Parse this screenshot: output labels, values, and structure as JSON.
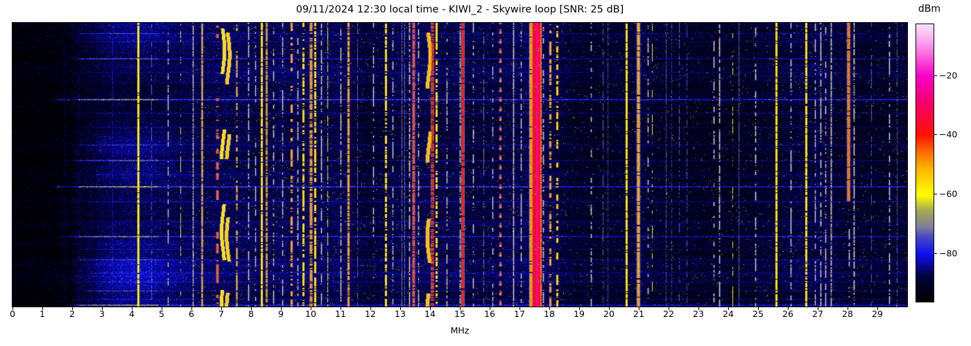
{
  "title": "09/11/2024 12:30 local time - KIWI_2 - Skywire loop [SNR: 25 dB]",
  "xaxis": {
    "label": "MHz",
    "tick_labels": [
      "0",
      "1",
      "2",
      "3",
      "4",
      "5",
      "6",
      "7",
      "8",
      "9",
      "10",
      "11",
      "12",
      "13",
      "14",
      "15",
      "16",
      "17",
      "18",
      "19",
      "20",
      "21",
      "22",
      "23",
      "24",
      "25",
      "26",
      "27",
      "28",
      "29"
    ],
    "min": 0,
    "max": 30
  },
  "colorbar": {
    "label": "dBm",
    "tick_labels": [
      "−20",
      "−40",
      "−60",
      "−80"
    ],
    "tick_values": [
      -20,
      -40,
      -60,
      -80
    ]
  },
  "chart_data": {
    "type": "heatmap",
    "subtype": "rf-waterfall-spectrogram",
    "title": "09/11/2024 12:30 local time - KIWI_2 - Skywire loop [SNR: 25 dB]",
    "xlabel": "MHz",
    "xlim": [
      0,
      30
    ],
    "x_ticks": [
      0,
      1,
      2,
      3,
      4,
      5,
      6,
      7,
      8,
      9,
      10,
      11,
      12,
      13,
      14,
      15,
      16,
      17,
      18,
      19,
      20,
      21,
      22,
      23,
      24,
      25,
      26,
      27,
      28,
      29
    ],
    "colorbar_label": "dBm",
    "colorbar_ticks": [
      -20,
      -40,
      -60,
      -80
    ],
    "clim": [
      -96.1,
      -2.6
    ],
    "grid": false,
    "legend": "colorbar-right",
    "colormap": [
      [
        0.0,
        "#000000"
      ],
      [
        0.09,
        "#020238"
      ],
      [
        0.169,
        "#0d0dee"
      ],
      [
        0.23,
        "#4444c8"
      ],
      [
        0.27,
        "#7f7f99"
      ],
      [
        0.33,
        "#a8a855"
      ],
      [
        0.383,
        "#ffff00"
      ],
      [
        0.48,
        "#ffb400"
      ],
      [
        0.54,
        "#ff6a00"
      ],
      [
        0.6,
        "#fe1000"
      ],
      [
        0.72,
        "#f6006e"
      ],
      [
        0.813,
        "#f800c8"
      ],
      [
        0.94,
        "#fba8ee"
      ],
      [
        1.0,
        "#fde2f9"
      ]
    ],
    "noise_profile_dbm": [
      -95.5,
      -95,
      -93.5,
      -91,
      -90.5,
      -90,
      -88.5,
      -87,
      -87.5,
      -87.5,
      -87,
      -87.5,
      -89.5,
      -87.5,
      -87.5,
      -88,
      -88.5,
      -87.5,
      -88,
      -90.5,
      -90.5,
      -89,
      -90.5,
      -91,
      -91,
      -90,
      -89,
      -88,
      -90,
      -90.5,
      -89.5
    ],
    "cloud": {
      "center_mhz": 4.0,
      "sigma_mhz": 1.25,
      "amp_db": 7
    },
    "signals_format": "[freq_MHz, width_px, level_dBm, duty, style, y0_frac_opt, y1_frac_opt]",
    "signals": [
      [
        1.75,
        1,
        -87,
        0.5,
        "dashed"
      ],
      [
        2.2,
        1,
        -85,
        0.5,
        "dashed"
      ],
      [
        3.35,
        1.5,
        -80,
        0.6,
        "dashed"
      ],
      [
        4.22,
        2,
        -59,
        0.95,
        "solid"
      ],
      [
        4.65,
        1,
        -73,
        0.5,
        "dashed"
      ],
      [
        5.22,
        1.5,
        -60,
        0.45,
        "dashed"
      ],
      [
        5.62,
        1,
        -62,
        0.3,
        "dashed"
      ],
      [
        6.05,
        1.5,
        -59,
        0.8,
        "solid"
      ],
      [
        6.35,
        1.5,
        -48,
        0.9,
        "solid"
      ],
      [
        6.87,
        2,
        -45,
        0.25,
        "dashed"
      ],
      [
        7.05,
        4,
        -57,
        0.75,
        "patchy"
      ],
      [
        7.22,
        4,
        -55,
        0.7,
        "patchy"
      ],
      [
        7.5,
        1.5,
        -49,
        0.55,
        "dashed"
      ],
      [
        7.9,
        1.5,
        -58,
        0.5,
        "dashed"
      ],
      [
        8.15,
        1.5,
        -60,
        0.4,
        "dashed"
      ],
      [
        8.35,
        2,
        -56,
        0.9,
        "solid"
      ],
      [
        8.5,
        1.5,
        -47,
        0.8,
        "solid"
      ],
      [
        8.75,
        1.5,
        -58,
        0.45,
        "dashed"
      ],
      [
        9.05,
        1.5,
        -59,
        0.5,
        "dashed"
      ],
      [
        9.35,
        2,
        -50,
        0.55,
        "dashed"
      ],
      [
        9.55,
        1.5,
        -57,
        0.5,
        "dashed"
      ],
      [
        9.75,
        2,
        -56,
        0.6,
        "dashed"
      ],
      [
        10.0,
        2.5,
        -49,
        0.75,
        "dashed"
      ],
      [
        10.15,
        2,
        -56,
        0.7,
        "dashed"
      ],
      [
        10.35,
        1.5,
        -58,
        0.5,
        "dashed"
      ],
      [
        10.55,
        1,
        -60,
        0.6,
        "dashed"
      ],
      [
        11.0,
        1.5,
        -58,
        0.5,
        "dashed"
      ],
      [
        11.25,
        2,
        -50,
        0.85,
        "solid"
      ],
      [
        11.55,
        1,
        -72,
        0.6,
        "dashed"
      ],
      [
        12.1,
        1.5,
        -59,
        0.4,
        "dashed"
      ],
      [
        12.5,
        2,
        -56,
        0.7,
        "dashed"
      ],
      [
        12.75,
        1.5,
        -59,
        0.45,
        "dashed"
      ],
      [
        13.05,
        1,
        -71,
        0.85,
        "solid"
      ],
      [
        13.15,
        1,
        -71,
        0.8,
        "solid"
      ],
      [
        13.3,
        1.5,
        -56,
        0.6,
        "dashed"
      ],
      [
        13.45,
        2,
        -44,
        0.9,
        "solid"
      ],
      [
        13.6,
        1.5,
        -57,
        0.5,
        "dashed"
      ],
      [
        13.95,
        4,
        -53,
        0.75,
        "patchy"
      ],
      [
        14.07,
        2,
        -41,
        0.8,
        "dashed"
      ],
      [
        14.2,
        2,
        -56,
        0.5,
        "dashed"
      ],
      [
        14.55,
        1.5,
        -59,
        0.4,
        "dashed"
      ],
      [
        15.0,
        1.5,
        -57,
        0.7,
        "dashed"
      ],
      [
        15.1,
        2,
        -40,
        0.96,
        "solid"
      ],
      [
        15.45,
        1.5,
        -58,
        0.45,
        "dashed"
      ],
      [
        15.8,
        1,
        -70,
        0.5,
        "dashed"
      ],
      [
        16.1,
        1.5,
        -60,
        0.35,
        "dashed"
      ],
      [
        16.35,
        2,
        -47,
        0.3,
        "dotted"
      ],
      [
        16.35,
        1,
        -41,
        0.15,
        "dotted"
      ],
      [
        16.8,
        1.5,
        -57,
        0.9,
        "solid"
      ],
      [
        17.05,
        1.5,
        -59,
        0.5,
        "dashed"
      ],
      [
        17.38,
        3,
        -49,
        0.95,
        "solid"
      ],
      [
        17.46,
        2,
        -38,
        0.97,
        "solid"
      ],
      [
        17.52,
        2,
        -36,
        0.97,
        "solid"
      ],
      [
        17.58,
        2,
        -23,
        0.96,
        "solid"
      ],
      [
        17.64,
        2,
        -37,
        0.96,
        "solid"
      ],
      [
        17.7,
        2,
        -46,
        0.9,
        "solid"
      ],
      [
        17.78,
        1.5,
        -56,
        0.5,
        "dashed"
      ],
      [
        18.02,
        2,
        -50,
        0.5,
        "dashed"
      ],
      [
        18.25,
        2,
        -54,
        0.45,
        "dashed"
      ],
      [
        19.4,
        1.5,
        -58,
        0.3,
        "dashed"
      ],
      [
        19.8,
        1,
        -72,
        0.5,
        "dashed"
      ],
      [
        19.95,
        1,
        -74,
        0.6,
        "solid"
      ],
      [
        20.58,
        2,
        -57,
        0.93,
        "solid"
      ],
      [
        20.98,
        3,
        -50,
        0.95,
        "solid"
      ],
      [
        21.3,
        1.5,
        -58,
        0.35,
        "dashed"
      ],
      [
        21.45,
        1,
        -60,
        0.25,
        "dashed"
      ],
      [
        21.9,
        1,
        -73,
        0.7,
        "solid"
      ],
      [
        22.1,
        1,
        -74,
        0.6,
        "solid"
      ],
      [
        22.35,
        1,
        -73,
        0.5,
        "dashed"
      ],
      [
        22.6,
        1,
        -74,
        0.5,
        "dashed"
      ],
      [
        23.5,
        1.5,
        -58,
        0.4,
        "dashed"
      ],
      [
        23.7,
        1.5,
        -57,
        0.6,
        "dashed"
      ],
      [
        24.15,
        1,
        -60,
        0.25,
        "dashed"
      ],
      [
        24.35,
        1.5,
        -72,
        0.8,
        "solid"
      ],
      [
        24.9,
        1.5,
        -57,
        0.45,
        "dashed"
      ],
      [
        25.6,
        2,
        -57,
        0.9,
        "solid"
      ],
      [
        26.1,
        1.5,
        -58,
        0.5,
        "dashed"
      ],
      [
        26.6,
        2,
        -57,
        0.85,
        "solid"
      ],
      [
        26.9,
        1.5,
        -59,
        0.4,
        "dashed"
      ],
      [
        27.1,
        1.5,
        -57,
        0.5,
        "dashed"
      ],
      [
        27.25,
        1.5,
        -58,
        0.45,
        "dashed"
      ],
      [
        27.45,
        1.5,
        -56,
        0.8,
        "solid"
      ],
      [
        28.02,
        2.5,
        -46,
        0.95,
        "solid",
        0,
        0.63
      ],
      [
        28.05,
        1.5,
        -57,
        0.4,
        "dashed",
        0.63,
        1
      ],
      [
        28.22,
        1.5,
        -56,
        0.7,
        "dashed"
      ],
      [
        28.8,
        1,
        -73,
        0.4,
        "dashed"
      ],
      [
        29.4,
        1.5,
        -58,
        0.45,
        "dashed"
      ],
      [
        29.65,
        1,
        -72,
        0.6,
        "solid"
      ]
    ],
    "streaks_format": "[time_frac, start_MHz, end_MHz, boost_dB, thickness_px, hot_flag]",
    "streaks": [
      [
        0.037,
        1.6,
        30,
        5,
        1,
        1
      ],
      [
        0.066,
        2.0,
        30,
        4,
        1,
        0
      ],
      [
        0.125,
        1.8,
        30,
        6,
        2,
        1
      ],
      [
        0.173,
        2.2,
        30,
        4,
        1,
        0
      ],
      [
        0.21,
        3.0,
        16,
        3.5,
        1,
        0
      ],
      [
        0.268,
        1.4,
        30,
        9,
        2,
        1
      ],
      [
        0.317,
        2.0,
        30,
        5,
        1,
        0
      ],
      [
        0.368,
        2.4,
        30,
        4,
        1,
        0
      ],
      [
        0.43,
        2.0,
        30,
        4.5,
        1,
        1
      ],
      [
        0.483,
        1.6,
        30,
        6,
        2,
        1
      ],
      [
        0.535,
        2.8,
        30,
        3.5,
        1,
        0
      ],
      [
        0.578,
        1.4,
        30,
        9,
        2,
        1
      ],
      [
        0.632,
        2.0,
        30,
        5,
        1,
        0
      ],
      [
        0.7,
        2.6,
        30,
        4,
        1,
        0
      ],
      [
        0.752,
        1.5,
        30,
        8,
        2,
        1
      ],
      [
        0.8,
        2.2,
        30,
        4.5,
        1,
        0
      ],
      [
        0.837,
        2.0,
        30,
        5,
        1,
        1
      ],
      [
        0.883,
        2.6,
        30,
        4,
        1,
        0
      ],
      [
        0.915,
        2.0,
        30,
        4.5,
        1,
        0
      ],
      [
        0.945,
        2.4,
        30,
        5,
        1,
        1
      ],
      [
        0.975,
        2.0,
        30,
        5,
        1,
        0
      ],
      [
        0.995,
        2.0,
        30,
        8,
        2,
        1
      ]
    ]
  },
  "colors": {
    "background": "#ffffff",
    "axis": "#000000",
    "strong_signal_red": "#fe1000",
    "signal_yellow": "#ffff00",
    "noise_blue": "#0d0dee",
    "peak_pink": "#f800c8"
  }
}
